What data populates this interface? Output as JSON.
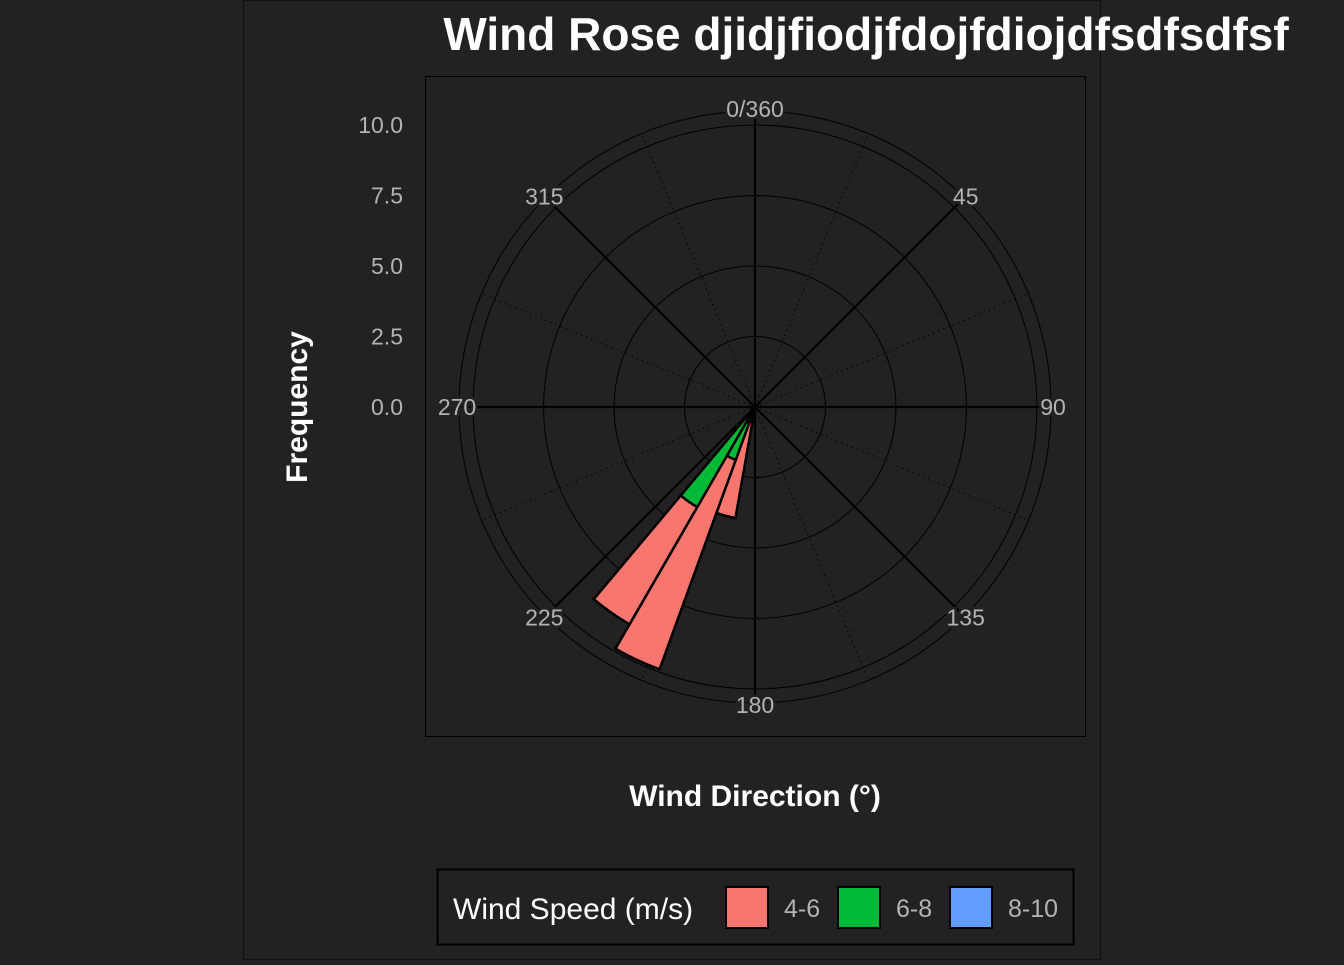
{
  "colors": {
    "background": "#222222",
    "panel_border": "#000000",
    "grid_major": "#000000",
    "grid_minor": "#3a3a3a",
    "tick_text": "#b3b3b3",
    "title_text": "#ffffff",
    "speed_4_6": "#F8766D",
    "speed_6_8": "#00BA38",
    "speed_8_10": "#619CFF"
  },
  "chart_data": {
    "type": "wind-rose",
    "title": "Wind Rose djidjfiodjfdojfdiojdfsdfsdfsf",
    "xlabel": "Wind Direction (°)",
    "ylabel": "Frequency",
    "ylim": [
      0,
      10.5
    ],
    "radial_ticks": [
      "0.0",
      "2.5",
      "5.0",
      "7.5",
      "10.0"
    ],
    "radial_tick_values": [
      0,
      2.5,
      5,
      7.5,
      10
    ],
    "angle_ticks": [
      {
        "angle": 0,
        "label": "0/360"
      },
      {
        "angle": 45,
        "label": "45"
      },
      {
        "angle": 90,
        "label": "90"
      },
      {
        "angle": 135,
        "label": "135"
      },
      {
        "angle": 180,
        "label": "180"
      },
      {
        "angle": 225,
        "label": "225"
      },
      {
        "angle": 270,
        "label": "270"
      },
      {
        "angle": 315,
        "label": "315"
      }
    ],
    "minor_angles": [
      22.5,
      67.5,
      112.5,
      157.5,
      202.5,
      247.5,
      292.5,
      337.5
    ],
    "bin_width_deg": 10,
    "legend": {
      "title": "Wind Speed (m/s)",
      "placement": "bottom",
      "entries": [
        "4-6",
        "6-8",
        "8-10"
      ]
    },
    "bins": [
      {
        "start": 190,
        "end": 200,
        "segments": [
          {
            "series": "4-6",
            "from": 0,
            "to": 4
          }
        ]
      },
      {
        "start": 200,
        "end": 210,
        "segments": [
          {
            "series": "8-10",
            "from": 0,
            "to": 0.6
          },
          {
            "series": "6-8",
            "from": 0.6,
            "to": 2.0
          },
          {
            "series": "4-6",
            "from": 2.0,
            "to": 9.9
          }
        ]
      },
      {
        "start": 210,
        "end": 220,
        "segments": [
          {
            "series": "8-10",
            "from": 0,
            "to": 0.3
          },
          {
            "series": "6-8",
            "from": 0.3,
            "to": 4.1
          },
          {
            "series": "4-6",
            "from": 4.1,
            "to": 8.9
          }
        ]
      },
      {
        "start": 220,
        "end": 230,
        "segments": [
          {
            "series": "8-10",
            "from": 0,
            "to": 0.15
          }
        ]
      },
      {
        "start": 230,
        "end": 240,
        "segments": [
          {
            "series": "8-10",
            "from": 0,
            "to": 0.1
          }
        ]
      }
    ]
  }
}
